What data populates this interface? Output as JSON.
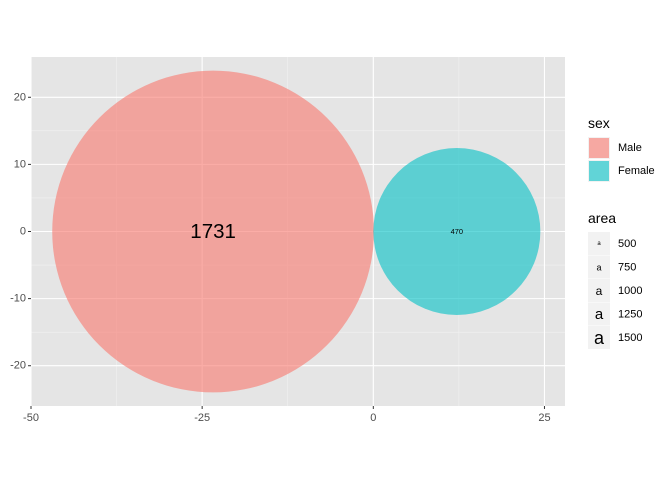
{
  "chart_data": {
    "type": "scatter",
    "subtype": "packed-circle",
    "title": "",
    "xlabel": "",
    "ylabel": "",
    "xlim": [
      -50,
      28
    ],
    "ylim": [
      -26,
      26
    ],
    "x_ticks": [
      -50,
      -25,
      0,
      25
    ],
    "x_tick_labels": [
      "-50",
      "-25",
      "0",
      "25"
    ],
    "y_ticks": [
      -20,
      -10,
      0,
      10,
      20
    ],
    "y_tick_labels": [
      "-20",
      "-10",
      "0",
      "10",
      "20"
    ],
    "grid": true,
    "background": "#e5e5e5",
    "circles": [
      {
        "sex": "Male",
        "x": -23.4,
        "y": 0,
        "radius": 23.5,
        "label": "1731",
        "area": 1731
      },
      {
        "sex": "Female",
        "x": 12.2,
        "y": 0,
        "radius": 12.2,
        "label": "470",
        "area": 470
      }
    ],
    "legends": [
      {
        "title": "sex",
        "type": "fill",
        "items": [
          {
            "label": "Male",
            "color": "#f8766d"
          },
          {
            "label": "Female",
            "color": "#00bfc4"
          }
        ]
      },
      {
        "title": "area",
        "type": "size",
        "items": [
          {
            "label": "500",
            "value": 500
          },
          {
            "label": "750",
            "value": 750
          },
          {
            "label": "1000",
            "value": 1000
          },
          {
            "label": "1250",
            "value": 1250
          },
          {
            "label": "1500",
            "value": 1500
          }
        ]
      }
    ],
    "legend_position": "right",
    "fill_opacity": 0.6
  }
}
